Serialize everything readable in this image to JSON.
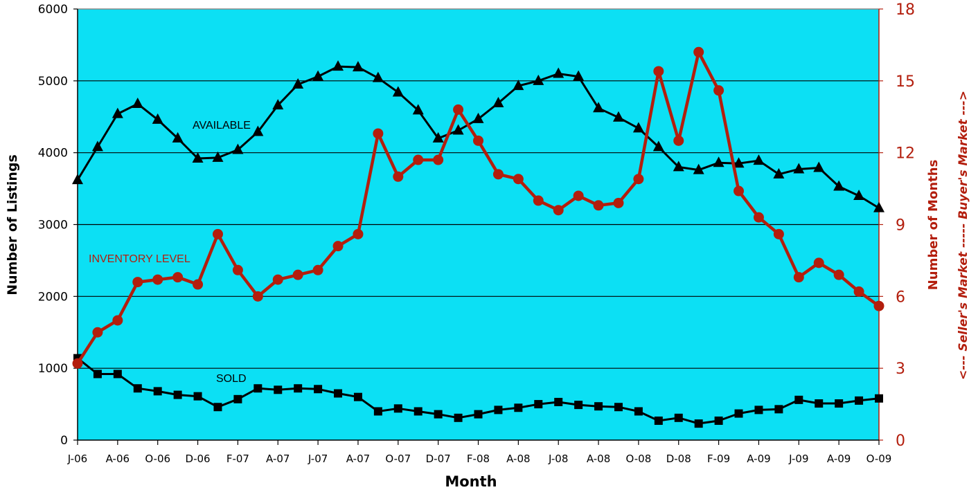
{
  "chart_data": {
    "type": "line",
    "xlabel": "Month",
    "ylabel": "Number of Listings",
    "y2label": "Number of Months",
    "y2label_side": "<--- Seller's Market ----- Buyer's Market --->",
    "ylim": [
      0,
      6000
    ],
    "y2lim": [
      0,
      18
    ],
    "yticks": [
      "0",
      "1000",
      "2000",
      "3000",
      "4000",
      "5000",
      "6000"
    ],
    "y2ticks": [
      "0",
      "3",
      "6",
      "9",
      "12",
      "15",
      "18"
    ],
    "x_tick_labels": [
      "J-06",
      "A-06",
      "O-06",
      "D-06",
      "F-07",
      "A-07",
      "J-07",
      "A-07",
      "O-07",
      "D-07",
      "F-08",
      "A-08",
      "J-08",
      "A-08",
      "O-08",
      "D-08",
      "F-09",
      "A-09",
      "J-09",
      "A-09",
      "O-09"
    ],
    "grid": "horizontal",
    "colors": {
      "plot_background": "#0ce0f4",
      "available": "#000000",
      "sold": "#000000",
      "inventory": "#b31e0d",
      "right_axis": "#b31e0d"
    },
    "series": [
      {
        "name": "AVAILABLE",
        "axis": "left",
        "marker": "triangle",
        "values": [
          3620,
          4080,
          4540,
          4680,
          4460,
          4200,
          3920,
          3930,
          4040,
          4290,
          4660,
          4950,
          5060,
          5200,
          5190,
          5040,
          4840,
          4590,
          4200,
          4310,
          4470,
          4690,
          4930,
          5000,
          5100,
          5060,
          4620,
          4490,
          4340,
          4080,
          3800,
          3760,
          3860,
          3850,
          3890,
          3700,
          3770,
          3790,
          3530,
          3400,
          3230
        ]
      },
      {
        "name": "SOLD",
        "axis": "left",
        "marker": "square",
        "values": [
          1140,
          920,
          920,
          720,
          680,
          630,
          610,
          460,
          570,
          720,
          700,
          720,
          710,
          650,
          600,
          400,
          440,
          400,
          360,
          310,
          360,
          420,
          450,
          500,
          530,
          490,
          470,
          460,
          400,
          270,
          310,
          230,
          270,
          370,
          420,
          430,
          560,
          510,
          510,
          550,
          580
        ]
      },
      {
        "name": "INVENTORY LEVEL",
        "axis": "right",
        "marker": "circle",
        "values": [
          3.2,
          4.5,
          5.0,
          6.6,
          6.7,
          6.8,
          6.5,
          8.6,
          7.1,
          6.0,
          6.7,
          6.9,
          7.1,
          8.1,
          8.6,
          12.8,
          11.0,
          11.7,
          11.7,
          13.8,
          12.5,
          11.1,
          10.9,
          10.0,
          9.6,
          10.2,
          9.8,
          9.9,
          10.9,
          15.4,
          12.5,
          16.2,
          14.6,
          10.4,
          9.3,
          8.6,
          6.8,
          7.4,
          6.9,
          6.2,
          5.6
        ]
      }
    ],
    "annotations": [
      {
        "text": "AVAILABLE",
        "color": "#000000"
      },
      {
        "text": "INVENTORY LEVEL",
        "color": "#b31e0d"
      },
      {
        "text": "SOLD",
        "color": "#000000"
      }
    ]
  }
}
